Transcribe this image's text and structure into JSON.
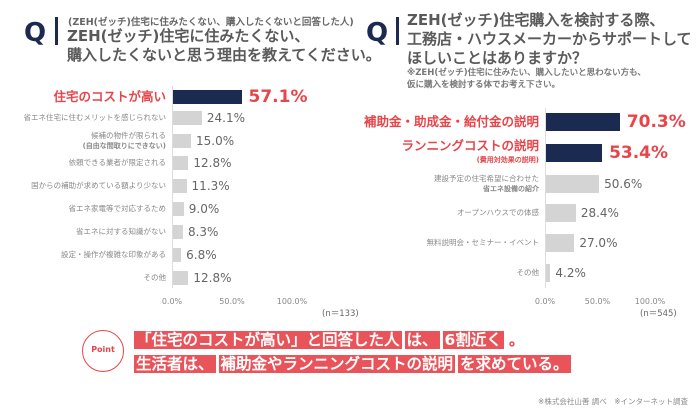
{
  "colors": {
    "highlight_bar": "#1a2a50",
    "other_bar": "#d4d4d4",
    "accent": "#e8454a"
  },
  "left": {
    "q": "Q",
    "subheading": "(ZEH(ゼッチ)住宅に住みたくない、購入したくないと回答した人)",
    "title_lines": [
      "ZEH(ゼッチ)住宅に住みたくない、",
      "購入したくないと思う理由を教えてください。"
    ],
    "n": "(n＝133)"
  },
  "right": {
    "q": "Q",
    "title_lines": [
      "ZEH(ゼッチ)住宅購入を検討する際、",
      "工務店・ハウスメーカーからサポートして",
      "ほしいことはありますか？"
    ],
    "note_lines": [
      "※ZEH(ゼッチ)住宅に住みたい、購入したいと思わない方も、",
      "仮に購入を検討する体でお考え下さい。"
    ],
    "n": "(n＝545)"
  },
  "chart_data": [
    {
      "type": "bar",
      "orientation": "horizontal",
      "xlim": [
        0,
        100
      ],
      "ticks": [
        "0.0%",
        "50.0%",
        "100.0%"
      ],
      "categories": [
        {
          "label": "住宅のコストが高い",
          "highlight": true
        },
        {
          "label": "省エネ住宅に住むメリットを感じられない"
        },
        {
          "label": "候補の物件が限られる",
          "sub": "(自由な間取りにできない)"
        },
        {
          "label": "依頼できる業者が限定される"
        },
        {
          "label": "国からの補助が求めている額より少ない"
        },
        {
          "label": "省エネ家電等で対応するため"
        },
        {
          "label": "省エネに対する知識がない"
        },
        {
          "label": "設定・操作が複雑な印象がある"
        },
        {
          "label": "その他"
        }
      ],
      "values": [
        57.1,
        24.1,
        15.0,
        12.8,
        11.3,
        9.0,
        8.3,
        6.8,
        12.8
      ],
      "value_labels": [
        "57.1%",
        "24.1%",
        "15.0%",
        "12.8%",
        "11.3%",
        "9.0%",
        "8.3%",
        "6.8%",
        "12.8%"
      ]
    },
    {
      "type": "bar",
      "orientation": "horizontal",
      "xlim": [
        0,
        100
      ],
      "ticks": [
        "0.0%",
        "50.0%",
        "100.0%"
      ],
      "categories": [
        {
          "label": "補助金・助成金・給付金の説明",
          "highlight": true
        },
        {
          "label": "ランニングコストの説明",
          "sub": "(費用対効果の説明)",
          "highlight": true
        },
        {
          "label": "建設予定の住宅希望に合わせた",
          "sub": "省エネ設備の紹介"
        },
        {
          "label": "オープンハウスでの体感"
        },
        {
          "label": "無料説明会・セミナー・イベント"
        },
        {
          "label": "その他"
        }
      ],
      "values": [
        70.3,
        53.4,
        50.6,
        28.4,
        27.0,
        4.2
      ],
      "value_labels": [
        "70.3%",
        "53.4%",
        "50.6%",
        "28.4%",
        "27.0%",
        "4.2%"
      ]
    }
  ],
  "point": {
    "badge": "Point",
    "line1": [
      "「住宅のコストが高い」と回答した人",
      "は、",
      "6割近く",
      "。"
    ],
    "line2": [
      "生活者は、",
      "補助金やランニングコストの説明",
      "を求めている。"
    ]
  },
  "footer": "※株式会社山善 調べ　※インターネット調査"
}
